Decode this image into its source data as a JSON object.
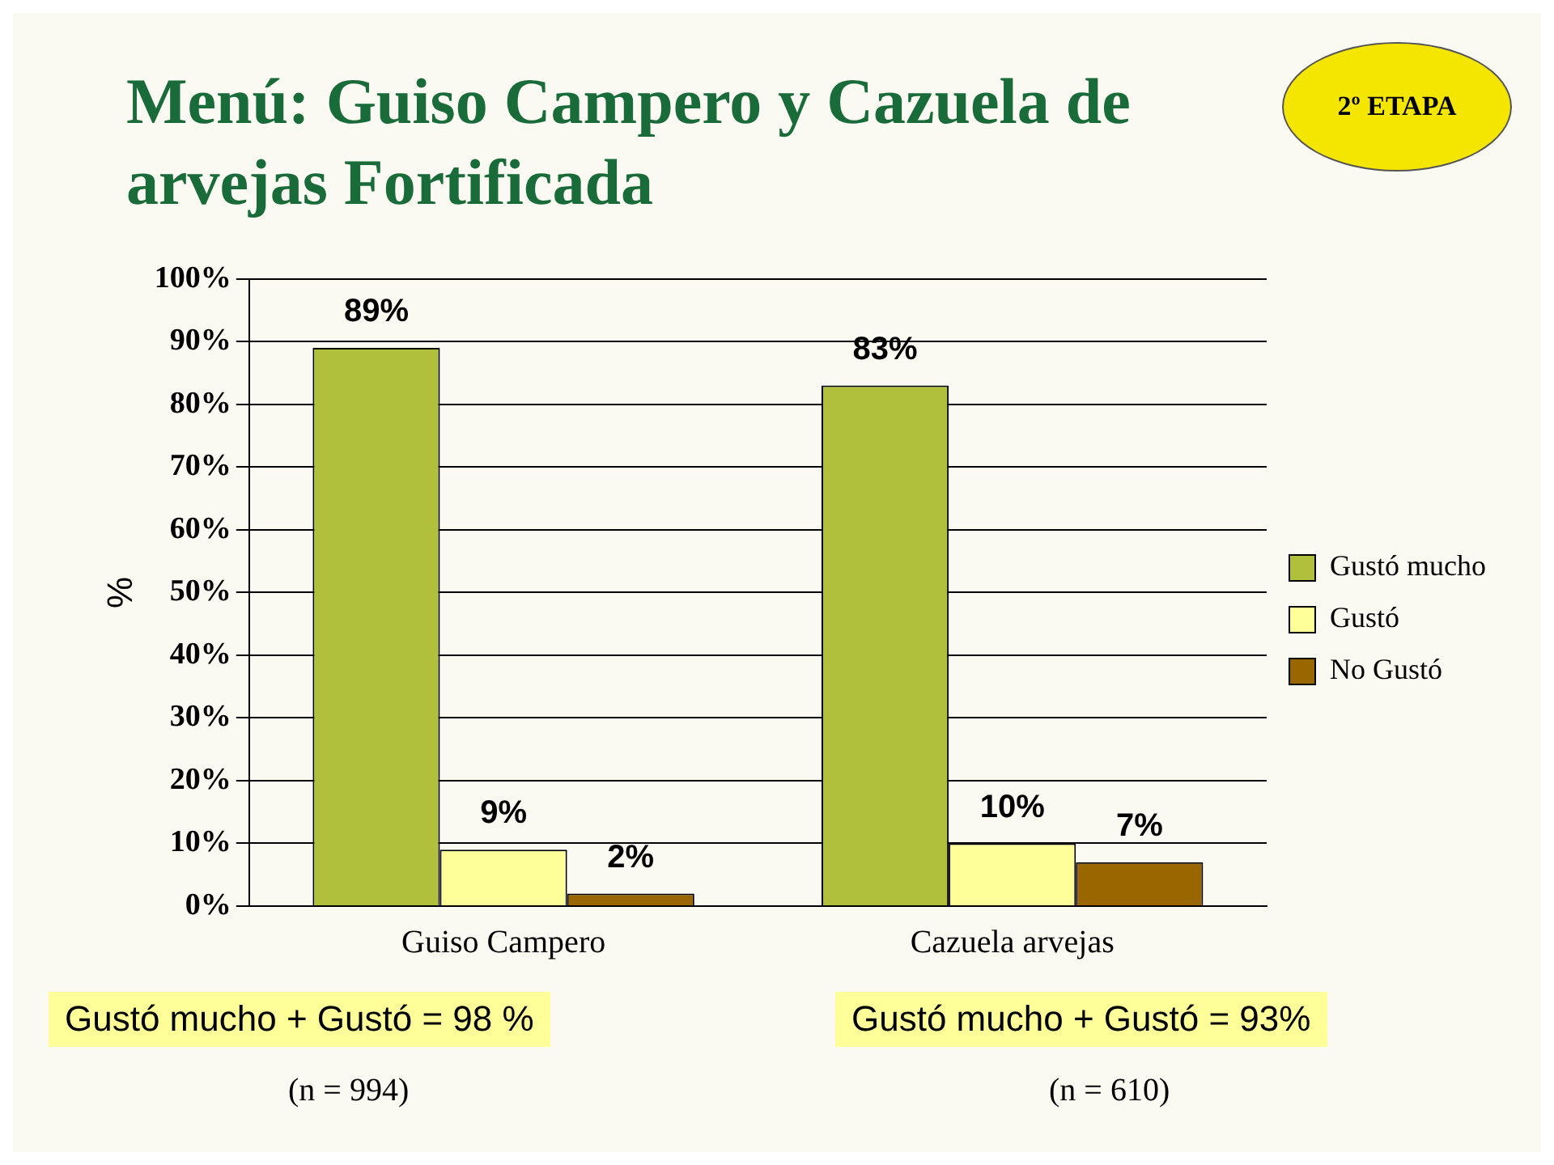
{
  "chart_data": {
    "type": "bar",
    "title": "Menú: Guiso Campero y Cazuela de arvejas Fortificada",
    "ylabel": "%",
    "categories": [
      "Guiso Campero",
      "Cazuela arvejas"
    ],
    "series": [
      {
        "name": "Gustó mucho",
        "color": "#b0c03c",
        "values": [
          89,
          83
        ],
        "value_labels": [
          "89%",
          "83%"
        ]
      },
      {
        "name": "Gustó",
        "color": "#ffff99",
        "values": [
          9,
          10
        ],
        "value_labels": [
          "9%",
          "10%"
        ]
      },
      {
        "name": "No Gustó",
        "color": "#996600",
        "values": [
          2,
          7
        ],
        "value_labels": [
          "2%",
          "7%"
        ]
      }
    ],
    "ylim": [
      0,
      100
    ],
    "yticks": [
      {
        "value": 0,
        "label": "0%"
      },
      {
        "value": 10,
        "label": "10%"
      },
      {
        "value": 20,
        "label": "20%"
      },
      {
        "value": 30,
        "label": "30%"
      },
      {
        "value": 40,
        "label": "40%"
      },
      {
        "value": 50,
        "label": "50%"
      },
      {
        "value": 60,
        "label": "60%"
      },
      {
        "value": 70,
        "label": "70%"
      },
      {
        "value": 80,
        "label": "80%"
      },
      {
        "value": 90,
        "label": "90%"
      },
      {
        "value": 100,
        "label": "100%"
      }
    ],
    "grid": "y",
    "legend": "right",
    "annotations": [
      "2º ETAPA",
      "Gustó mucho + Gustó = 98 %",
      "(n = 994)",
      "Gustó mucho + Gustó = 93%",
      "(n = 610)"
    ]
  }
}
